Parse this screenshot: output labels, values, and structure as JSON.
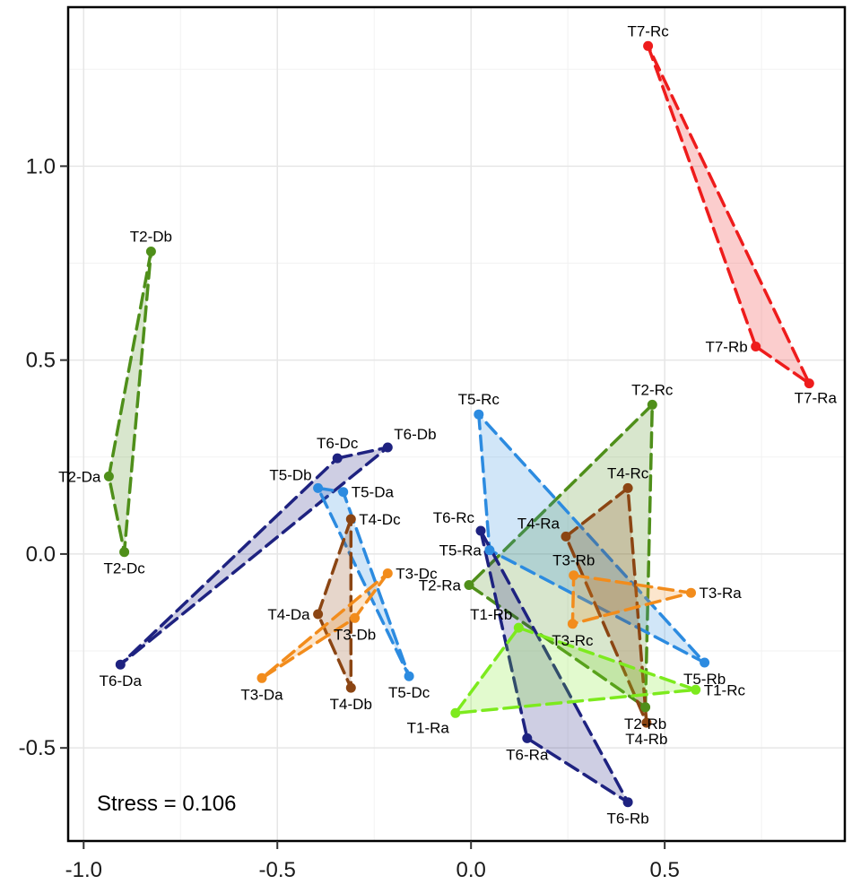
{
  "chart_data": {
    "type": "scatter",
    "title": "",
    "xlabel": "",
    "ylabel": "",
    "xlim": [
      -1.04,
      0.965
    ],
    "ylim": [
      -0.74,
      1.41
    ],
    "x_ticks": [
      -1.0,
      -0.5,
      0.0,
      0.5
    ],
    "x_tick_labels": [
      "-1.0",
      "-0.5",
      "0.0",
      "0.5"
    ],
    "y_ticks": [
      -0.5,
      0.0,
      0.5,
      1.0
    ],
    "y_tick_labels": [
      "-0.5",
      "0.0",
      "0.5",
      "1.0"
    ],
    "grid": true,
    "annotation": "Stress = 0.106",
    "groups": [
      {
        "name": "T2-D",
        "color": "#4f8f1a",
        "points": [
          {
            "label": "T2-Db",
            "x": -0.826,
            "y": 0.78,
            "lp": "a"
          },
          {
            "label": "T2-Da",
            "x": -0.935,
            "y": 0.2,
            "lp": "l"
          },
          {
            "label": "T2-Dc",
            "x": -0.895,
            "y": 0.005,
            "lp": "b"
          }
        ]
      },
      {
        "name": "T7-R",
        "color": "#ee1c1c",
        "points": [
          {
            "label": "T7-Rc",
            "x": 0.457,
            "y": 1.31,
            "lp": "a"
          },
          {
            "label": "T7-Rb",
            "x": 0.735,
            "y": 0.535,
            "lp": "l"
          },
          {
            "label": "T7-Ra",
            "x": 0.873,
            "y": 0.44,
            "lp": "br"
          }
        ]
      },
      {
        "name": "T6-D",
        "color": "#1e2280",
        "points": [
          {
            "label": "T6-Dc",
            "x": -0.345,
            "y": 0.247,
            "lp": "a"
          },
          {
            "label": "T6-Db",
            "x": -0.215,
            "y": 0.275,
            "lp": "ar"
          },
          {
            "label": "T6-Da",
            "x": -0.905,
            "y": -0.285,
            "lp": "b"
          }
        ]
      },
      {
        "name": "T5-D",
        "color": "#2c8be0",
        "points": [
          {
            "label": "T5-Db",
            "x": -0.395,
            "y": 0.17,
            "lp": "al"
          },
          {
            "label": "T5-Da",
            "x": -0.33,
            "y": 0.16,
            "lp": "r"
          },
          {
            "label": "T5-Dc",
            "x": -0.16,
            "y": -0.315,
            "lp": "b"
          }
        ]
      },
      {
        "name": "T4-D",
        "color": "#8b4513",
        "points": [
          {
            "label": "T4-Dc",
            "x": -0.31,
            "y": 0.09,
            "lp": "r"
          },
          {
            "label": "T4-Da",
            "x": -0.395,
            "y": -0.155,
            "lp": "l"
          },
          {
            "label": "T4-Db",
            "x": -0.31,
            "y": -0.345,
            "lp": "b"
          }
        ]
      },
      {
        "name": "T3-D",
        "color": "#f28c1c",
        "points": [
          {
            "label": "T3-Dc",
            "x": -0.215,
            "y": -0.05,
            "lp": "r"
          },
          {
            "label": "T3-Db",
            "x": -0.3,
            "y": -0.165,
            "lp": "b"
          },
          {
            "label": "T3-Da",
            "x": -0.54,
            "y": -0.32,
            "lp": "b"
          }
        ]
      },
      {
        "name": "T2-R",
        "color": "#4f8f1a",
        "points": [
          {
            "label": "T2-Rc",
            "x": 0.468,
            "y": 0.385,
            "lp": "a"
          },
          {
            "label": "T2-Ra",
            "x": -0.005,
            "y": -0.08,
            "lp": "l"
          },
          {
            "label": "T2-Rb",
            "x": 0.45,
            "y": -0.395,
            "lp": "b"
          }
        ]
      },
      {
        "name": "T5-R",
        "color": "#2c8be0",
        "points": [
          {
            "label": "T5-Rc",
            "x": 0.02,
            "y": 0.36,
            "lp": "a"
          },
          {
            "label": "T5-Ra",
            "x": 0.048,
            "y": 0.01,
            "lp": "l"
          },
          {
            "label": "T5-Rb",
            "x": 0.603,
            "y": -0.28,
            "lp": "b"
          }
        ]
      },
      {
        "name": "T6-R",
        "color": "#1e2280",
        "points": [
          {
            "label": "T6-Rc",
            "x": 0.025,
            "y": 0.06,
            "lp": "al"
          },
          {
            "label": "T6-Ra",
            "x": 0.145,
            "y": -0.475,
            "lp": "b"
          },
          {
            "label": "T6-Rb",
            "x": 0.405,
            "y": -0.64,
            "lp": "b"
          }
        ]
      },
      {
        "name": "T4-R",
        "color": "#8b4513",
        "points": [
          {
            "label": "T4-Rc",
            "x": 0.405,
            "y": 0.17,
            "lp": "a"
          },
          {
            "label": "T4-Ra",
            "x": 0.245,
            "y": 0.045,
            "lp": "al"
          },
          {
            "label": "T4-Rb",
            "x": 0.453,
            "y": -0.435,
            "lp": "b"
          }
        ]
      },
      {
        "name": "T3-R",
        "color": "#f28c1c",
        "points": [
          {
            "label": "T3-Rb",
            "x": 0.265,
            "y": -0.055,
            "lp": "a"
          },
          {
            "label": "T3-Ra",
            "x": 0.568,
            "y": -0.1,
            "lp": "r"
          },
          {
            "label": "T3-Rc",
            "x": 0.262,
            "y": -0.18,
            "lp": "b"
          }
        ]
      },
      {
        "name": "T1-R",
        "color": "#7dea1e",
        "points": [
          {
            "label": "T1-Rb",
            "x": 0.123,
            "y": -0.19,
            "lp": "al"
          },
          {
            "label": "T1-Rc",
            "x": 0.58,
            "y": -0.35,
            "lp": "r"
          },
          {
            "label": "T1-Ra",
            "x": -0.04,
            "y": -0.41,
            "lp": "bl"
          }
        ]
      }
    ]
  }
}
